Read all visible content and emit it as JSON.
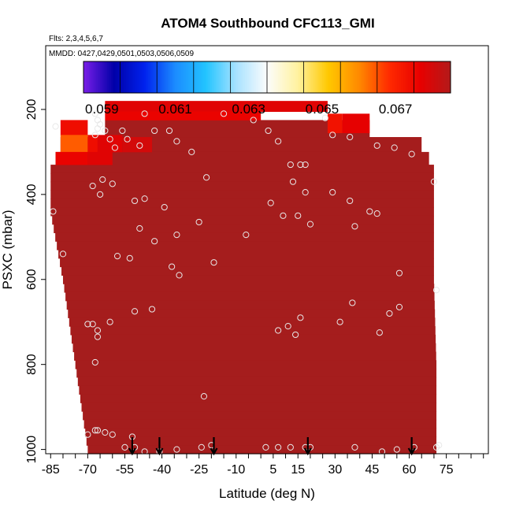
{
  "chart_data": {
    "type": "heatmap",
    "title": "ATOM4 Southbound CFC113_GMI",
    "flights_text": "Flts: 2,3,4,5,6,7",
    "dates_text": "MMDD: 0427,0429,0501,0503,0506,0509",
    "xlabel": "Latitude (deg N)",
    "ylabel": "PSXC (mbar)",
    "xlim": [
      -87,
      92
    ],
    "ylim": [
      1010,
      50
    ],
    "x_ticks": [
      -85,
      -70,
      -55,
      -40,
      -25,
      -10,
      5,
      15,
      30,
      45,
      60,
      75
    ],
    "x_minor_ticks": [
      -85,
      -80,
      -75,
      -70,
      -65,
      -60,
      -55,
      -50,
      -45,
      -40,
      -35,
      -30,
      -25,
      -20,
      -15,
      -10,
      -5,
      0,
      5,
      10,
      15,
      20,
      25,
      30,
      35,
      40,
      45,
      50,
      55,
      60,
      65,
      70,
      75,
      80,
      85,
      90
    ],
    "y_ticks": [
      200,
      400,
      600,
      800,
      1000
    ],
    "colorbar": {
      "labels": [
        "0.059",
        "0.061",
        "0.063",
        "0.065",
        "0.067"
      ],
      "label_values": [
        0.059,
        0.061,
        0.063,
        0.065,
        0.067
      ],
      "segments": 10,
      "range": [
        0.0585,
        0.0685
      ],
      "colors": [
        "#7a1ee8",
        "#0000a8",
        "#0022ee",
        "#1c8cff",
        "#22c4ff",
        "#a8e2ff",
        "#fcfcfc",
        "#fff2a0",
        "#ffc800",
        "#ff8a00",
        "#ff2a00",
        "#e80000",
        "#b31a1a"
      ]
    },
    "field": {
      "base_color": "#a51d1d",
      "profile_bounds": [
        {
          "p": 440,
          "lat_min": -85,
          "lat_max": 70
        },
        {
          "p": 600,
          "lat_min": -80,
          "lat_max": 70
        },
        {
          "p": 800,
          "lat_min": -75,
          "lat_max": 71
        },
        {
          "p": 1000,
          "lat_min": -70,
          "lat_max": 71
        }
      ],
      "cells": [
        {
          "lat": [
            -63,
            27
          ],
          "p": [
            180,
            205
          ],
          "value": 0.0678
        },
        {
          "lat": [
            -63,
            0
          ],
          "p": [
            205,
            225
          ],
          "value": 0.0676
        },
        {
          "lat": [
            27,
            33
          ],
          "p": [
            210,
            255
          ],
          "value": 0.0673
        },
        {
          "lat": [
            33,
            44
          ],
          "p": [
            210,
            255
          ],
          "value": 0.0677
        },
        {
          "lat": [
            -81,
            -70
          ],
          "p": [
            225,
            260
          ],
          "value": 0.0674
        },
        {
          "lat": [
            -81,
            -70
          ],
          "p": [
            260,
            300
          ],
          "value": 0.0664
        },
        {
          "lat": [
            -70,
            -66
          ],
          "p": [
            260,
            300
          ],
          "value": 0.0674
        },
        {
          "lat": [
            -66,
            -56
          ],
          "p": [
            260,
            300
          ],
          "value": 0.0678
        },
        {
          "lat": [
            -56,
            -44
          ],
          "p": [
            265,
            300
          ],
          "value": 0.068
        },
        {
          "lat": [
            -83,
            -70
          ],
          "p": [
            300,
            330
          ],
          "value": 0.0676
        },
        {
          "lat": [
            -70,
            -60
          ],
          "p": [
            300,
            330
          ],
          "value": 0.0678
        }
      ],
      "cell_value_note": "remaining area ≈ 0.0680+"
    },
    "sample_points": [
      [
        -83,
        240
      ],
      [
        -67,
        210
      ],
      [
        -66,
        225
      ],
      [
        -66,
        245
      ],
      [
        -67,
        260
      ],
      [
        -65,
        235
      ],
      [
        -63,
        250
      ],
      [
        -61,
        270
      ],
      [
        -59,
        290
      ],
      [
        -56,
        250
      ],
      [
        -54,
        270
      ],
      [
        -49,
        285
      ],
      [
        -47,
        210
      ],
      [
        -43,
        250
      ],
      [
        -37,
        250
      ],
      [
        -34,
        275
      ],
      [
        -28,
        300
      ],
      [
        -15,
        210
      ],
      [
        -3,
        225
      ],
      [
        3,
        250
      ],
      [
        7,
        275
      ],
      [
        12,
        330
      ],
      [
        13,
        370
      ],
      [
        16,
        330
      ],
      [
        18,
        330
      ],
      [
        26,
        220
      ],
      [
        29,
        260
      ],
      [
        36,
        265
      ],
      [
        47,
        285
      ],
      [
        54,
        290
      ],
      [
        61,
        305
      ],
      [
        70,
        370
      ],
      [
        -84,
        440
      ],
      [
        -68,
        380
      ],
      [
        -65,
        400
      ],
      [
        -64,
        365
      ],
      [
        -60,
        375
      ],
      [
        -51,
        415
      ],
      [
        -49,
        480
      ],
      [
        -47,
        410
      ],
      [
        -43,
        510
      ],
      [
        -39,
        430
      ],
      [
        -34,
        495
      ],
      [
        -25,
        465
      ],
      [
        -22,
        360
      ],
      [
        -6,
        495
      ],
      [
        4,
        420
      ],
      [
        9,
        450
      ],
      [
        15,
        450
      ],
      [
        18,
        395
      ],
      [
        20,
        470
      ],
      [
        29,
        395
      ],
      [
        36,
        415
      ],
      [
        38,
        475
      ],
      [
        44,
        440
      ],
      [
        47,
        445
      ],
      [
        -80,
        540
      ],
      [
        -58,
        545
      ],
      [
        -53,
        550
      ],
      [
        -36,
        570
      ],
      [
        -33,
        590
      ],
      [
        -19,
        560
      ],
      [
        56,
        585
      ],
      [
        71,
        625
      ],
      [
        -70,
        705
      ],
      [
        -68,
        705
      ],
      [
        -66,
        720
      ],
      [
        -66,
        735
      ],
      [
        -61,
        700
      ],
      [
        -51,
        675
      ],
      [
        -44,
        670
      ],
      [
        -67,
        795
      ],
      [
        7,
        720
      ],
      [
        11,
        710
      ],
      [
        14,
        730
      ],
      [
        16,
        690
      ],
      [
        32,
        700
      ],
      [
        37,
        655
      ],
      [
        48,
        725
      ],
      [
        52,
        680
      ],
      [
        56,
        665
      ],
      [
        -23,
        875
      ],
      [
        -70,
        965
      ],
      [
        -67,
        955
      ],
      [
        -66,
        955
      ],
      [
        -63,
        960
      ],
      [
        -60,
        965
      ],
      [
        -55,
        995
      ],
      [
        -52,
        970
      ],
      [
        -51,
        995
      ],
      [
        -47,
        1005
      ],
      [
        -41,
        1005
      ],
      [
        -34,
        1000
      ],
      [
        -24,
        995
      ],
      [
        -20,
        990
      ],
      [
        2,
        995
      ],
      [
        7,
        995
      ],
      [
        12,
        995
      ],
      [
        18,
        995
      ],
      [
        20,
        995
      ],
      [
        38,
        995
      ],
      [
        49,
        1005
      ],
      [
        55,
        1000
      ],
      [
        62,
        995
      ],
      [
        71,
        995
      ],
      [
        72,
        990
      ]
    ],
    "arrows_lat": [
      -52,
      -41,
      -19,
      19,
      61
    ]
  }
}
